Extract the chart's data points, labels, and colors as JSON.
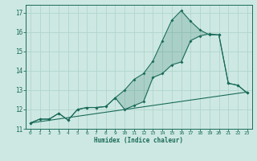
{
  "xlabel": "Humidex (Indice chaleur)",
  "xlim": [
    -0.5,
    23.5
  ],
  "ylim": [
    11,
    17.4
  ],
  "yticks": [
    11,
    12,
    13,
    14,
    15,
    16,
    17
  ],
  "xticks": [
    0,
    1,
    2,
    3,
    4,
    5,
    6,
    7,
    8,
    9,
    10,
    11,
    12,
    13,
    14,
    15,
    16,
    17,
    18,
    19,
    20,
    21,
    22,
    23
  ],
  "bg_color": "#cde8e2",
  "grid_color": "#b0d5cc",
  "line_color": "#1a6b5a",
  "line1_x": [
    0,
    1,
    2,
    3,
    4,
    5,
    6,
    7,
    8,
    9,
    10,
    11,
    12,
    13,
    14,
    15,
    16,
    17,
    18,
    19,
    20,
    21,
    22,
    23
  ],
  "line1_y": [
    11.3,
    11.5,
    11.5,
    11.8,
    11.45,
    12.0,
    12.1,
    12.1,
    12.15,
    12.6,
    12.0,
    12.2,
    12.4,
    13.65,
    13.85,
    14.3,
    14.45,
    15.55,
    15.8,
    15.9,
    15.85,
    13.35,
    13.25,
    12.85
  ],
  "line2_x": [
    0,
    1,
    2,
    3,
    4,
    5,
    6,
    7,
    8,
    9,
    10,
    11,
    12,
    13,
    14,
    15,
    16,
    17,
    18,
    19,
    20,
    21,
    22,
    23
  ],
  "line2_y": [
    11.3,
    11.5,
    11.5,
    11.8,
    11.45,
    12.0,
    12.1,
    12.1,
    12.15,
    12.6,
    13.0,
    13.55,
    13.85,
    14.5,
    15.55,
    16.6,
    17.1,
    16.55,
    16.1,
    15.85,
    15.85,
    13.35,
    13.25,
    12.85
  ],
  "line3_x": [
    0,
    23
  ],
  "line3_y": [
    11.3,
    12.9
  ],
  "xticklabels": [
    "0",
    "1",
    "2",
    "3",
    "4",
    "5",
    "6",
    "7",
    "8",
    "9",
    "10",
    "11",
    "12",
    "13",
    "14",
    "15",
    "16",
    "17",
    "18",
    "19",
    "20",
    "21",
    "22",
    "23"
  ]
}
